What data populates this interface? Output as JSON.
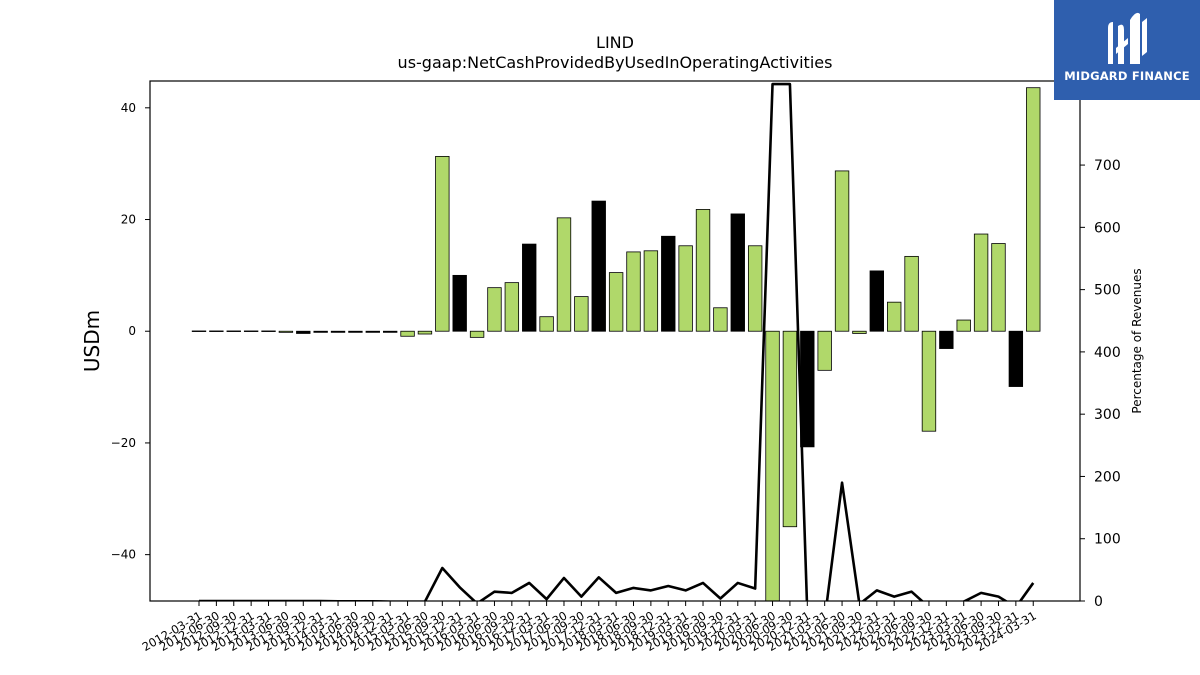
{
  "brand": {
    "name": "MIDGARD FINANCE",
    "color": "#2f5fae",
    "icon": "midgard-logo-icon"
  },
  "chart_data": {
    "type": "bar",
    "title": "LIND",
    "subtitle": "us-gaap:NetCashProvidedByUsedInOperatingActivities",
    "ylabel": "USDm",
    "y2label": "Percentage of Revenues",
    "ylim": [
      -48.3,
      44.8
    ],
    "y2lim": [
      0,
      835
    ],
    "yticks": [
      -40,
      -20,
      0,
      20,
      40
    ],
    "y2ticks": [
      0,
      100,
      200,
      300,
      400,
      500,
      600,
      700
    ],
    "colors": {
      "increase": "#b0d86a",
      "decrease": "#000000",
      "line": "#000000"
    },
    "categories": [
      "2012-03-31",
      "2012-06-30",
      "2012-09-30",
      "2012-12-31",
      "2013-03-31",
      "2013-06-30",
      "2013-09-30",
      "2013-12-31",
      "2014-03-31",
      "2014-06-30",
      "2014-09-30",
      "2014-12-31",
      "2015-03-31",
      "2015-06-30",
      "2015-09-30",
      "2015-12-31",
      "2016-03-31",
      "2016-06-30",
      "2016-09-30",
      "2016-12-31",
      "2017-03-31",
      "2017-06-30",
      "2017-09-30",
      "2017-12-31",
      "2018-03-31",
      "2018-06-30",
      "2018-09-30",
      "2018-12-31",
      "2019-03-31",
      "2019-06-30",
      "2019-09-30",
      "2019-12-31",
      "2020-03-31",
      "2020-06-30",
      "2020-09-30",
      "2020-12-31",
      "2021-03-31",
      "2021-06-30",
      "2021-09-30",
      "2021-12-31",
      "2022-03-31",
      "2022-06-30",
      "2022-09-30",
      "2022-12-31",
      "2023-03-31",
      "2023-06-30",
      "2023-09-30",
      "2023-12-31",
      "2024-03-31"
    ],
    "series": [
      {
        "type": "bar",
        "values": [
          0.05,
          0.05,
          0.05,
          0.05,
          0.05,
          -0.2,
          -0.4,
          -0.2,
          -0.2,
          -0.2,
          -0.2,
          -0.2,
          -0.9,
          -0.5,
          31.3,
          10.0,
          -1.1,
          7.8,
          8.7,
          15.6,
          2.6,
          20.3,
          6.2,
          23.3,
          10.5,
          14.2,
          14.4,
          17.0,
          15.3,
          21.8,
          4.2,
          21.0,
          15.3,
          -49.8,
          -35.0,
          -20.7,
          -7.0,
          28.7,
          -0.4,
          10.8,
          5.2,
          13.4,
          -17.9,
          -3.1,
          2.0,
          17.4,
          15.7,
          -9.9,
          43.6
        ],
        "bar_colors": [
          "decrease",
          "decrease",
          "decrease",
          "decrease",
          "decrease",
          "increase",
          "decrease",
          "decrease",
          "decrease",
          "decrease",
          "decrease",
          "decrease",
          "increase",
          "increase",
          "increase",
          "decrease",
          "increase",
          "increase",
          "increase",
          "decrease",
          "increase",
          "increase",
          "increase",
          "decrease",
          "increase",
          "increase",
          "increase",
          "decrease",
          "increase",
          "increase",
          "increase",
          "decrease",
          "increase",
          "increase",
          "increase",
          "decrease",
          "increase",
          "increase",
          "increase",
          "decrease",
          "increase",
          "increase",
          "increase",
          "decrease",
          "increase",
          "increase",
          "increase",
          "decrease",
          "increase"
        ]
      },
      {
        "type": "line",
        "axis": "right",
        "values": [
          0,
          0,
          0,
          0,
          0,
          0,
          0,
          0,
          -0.5,
          -0.5,
          -0.5,
          -1,
          -1,
          -1,
          53,
          22,
          -4,
          15,
          13,
          29,
          3,
          37,
          7,
          38,
          13,
          21,
          17,
          24,
          17,
          29,
          4,
          29,
          20,
          830,
          830,
          -20,
          -30,
          190,
          -5,
          17,
          7,
          15,
          -10,
          -10,
          -1,
          13,
          7,
          -10,
          29
        ]
      }
    ]
  }
}
